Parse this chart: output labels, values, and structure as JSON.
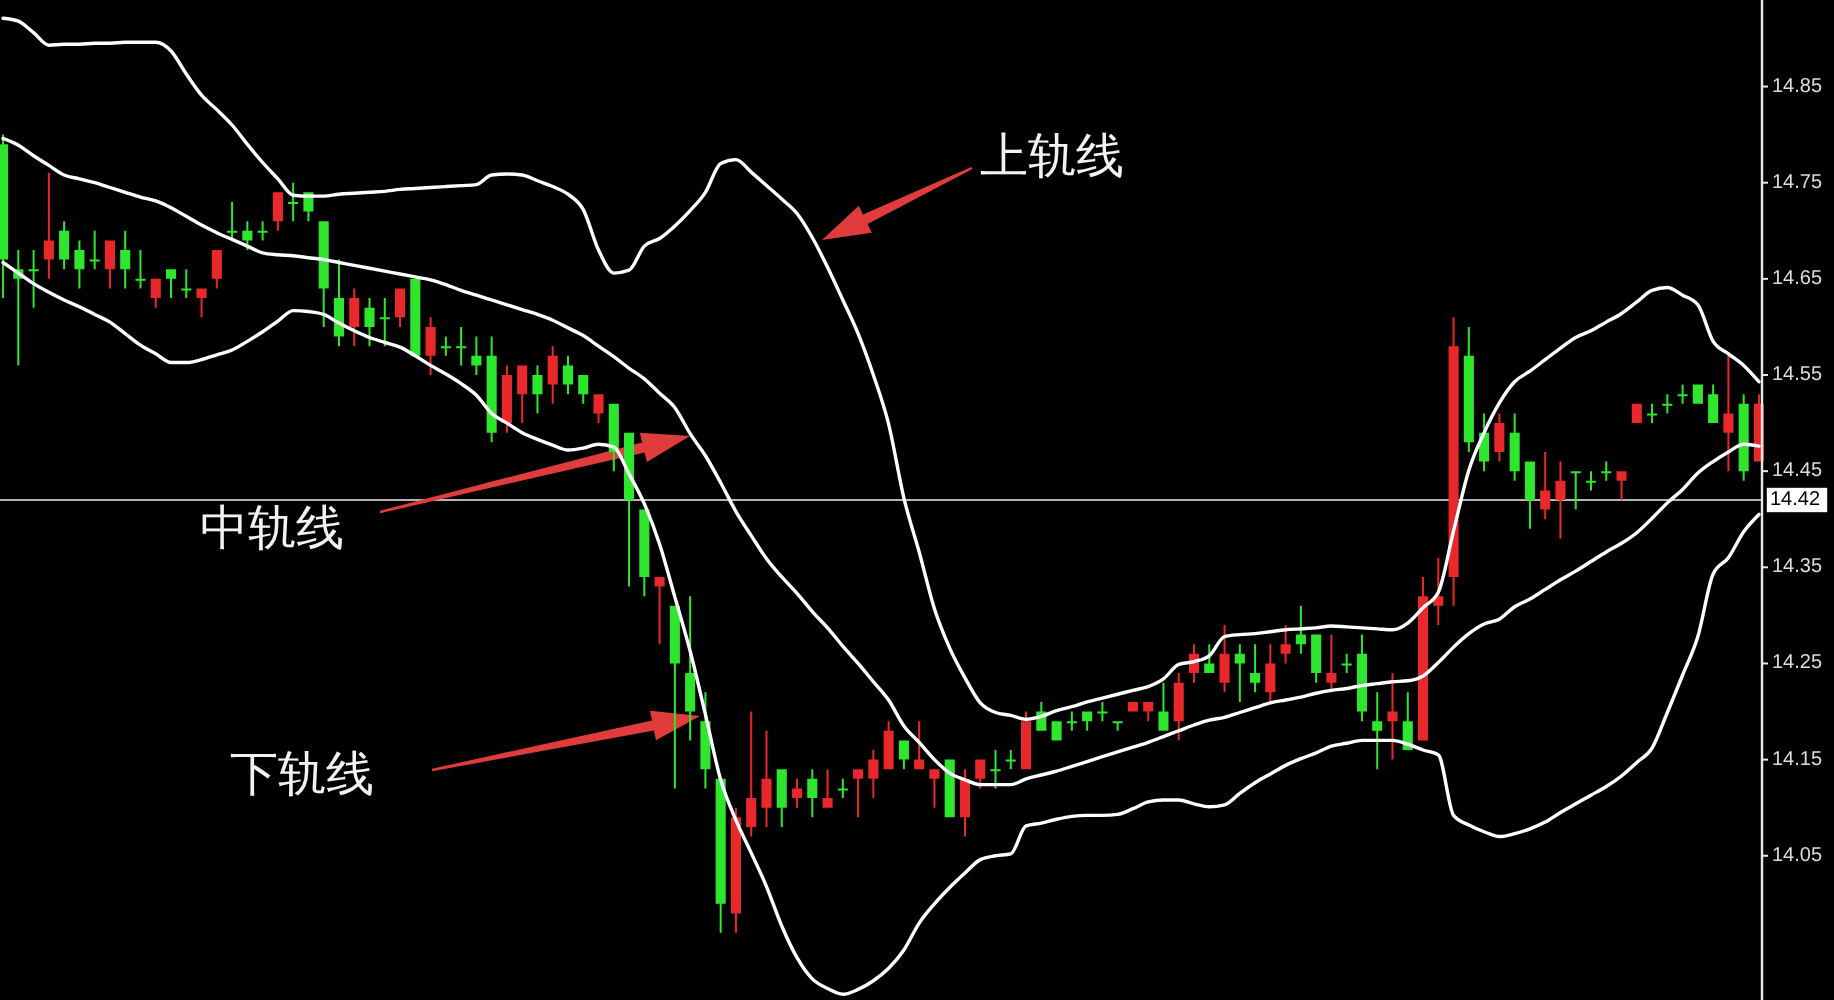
{
  "chart_data": {
    "type": "candlestick",
    "categories": [
      null,
      null,
      null,
      null,
      null,
      null,
      null,
      null,
      null,
      null,
      null,
      null,
      null,
      null,
      null,
      null,
      null,
      null,
      null,
      null,
      null,
      null,
      null,
      null,
      null,
      null,
      null,
      null,
      null,
      null,
      null,
      null,
      null,
      null,
      null,
      null,
      null,
      null,
      null,
      null,
      null,
      null,
      null,
      null,
      null,
      null,
      null,
      null,
      null,
      null,
      null,
      null,
      null,
      null,
      null,
      null,
      null,
      null,
      null,
      null,
      null,
      null,
      null,
      null,
      null,
      null,
      null,
      null,
      null,
      null,
      null,
      null,
      null,
      null,
      null,
      null,
      null,
      null,
      null,
      null,
      null,
      null,
      null,
      null,
      null,
      null,
      null,
      null,
      null,
      null,
      null,
      null,
      null,
      null,
      null,
      null,
      null,
      null,
      null,
      null,
      null,
      null,
      null,
      null,
      null,
      null,
      null,
      null,
      null,
      null,
      null,
      null,
      null,
      null,
      null,
      null
    ],
    "ohlc": [
      [
        14.79,
        14.8,
        14.63,
        14.67
      ],
      [
        14.66,
        14.68,
        14.56,
        14.65
      ],
      [
        14.66,
        14.68,
        14.62,
        14.66
      ],
      [
        14.67,
        14.76,
        14.65,
        14.69
      ],
      [
        14.7,
        14.71,
        14.66,
        14.67
      ],
      [
        14.68,
        14.69,
        14.64,
        14.66
      ],
      [
        14.67,
        14.7,
        14.66,
        14.67
      ],
      [
        14.66,
        14.69,
        14.64,
        14.69
      ],
      [
        14.68,
        14.7,
        14.64,
        14.66
      ],
      [
        14.65,
        14.68,
        14.64,
        14.65
      ],
      [
        14.63,
        14.65,
        14.62,
        14.65
      ],
      [
        14.66,
        14.66,
        14.63,
        14.65
      ],
      [
        14.64,
        14.66,
        14.63,
        14.64
      ],
      [
        14.63,
        14.64,
        14.61,
        14.64
      ],
      [
        14.65,
        14.68,
        14.64,
        14.68
      ],
      [
        14.7,
        14.73,
        14.69,
        14.7
      ],
      [
        14.7,
        14.71,
        14.68,
        14.69
      ],
      [
        14.7,
        14.71,
        14.69,
        14.7
      ],
      [
        14.71,
        14.74,
        14.7,
        14.74
      ],
      [
        14.73,
        14.75,
        14.71,
        14.73
      ],
      [
        14.74,
        14.74,
        14.71,
        14.72
      ],
      [
        14.71,
        14.71,
        14.6,
        14.64
      ],
      [
        14.63,
        14.67,
        14.58,
        14.59
      ],
      [
        14.6,
        14.64,
        14.58,
        14.63
      ],
      [
        14.62,
        14.63,
        14.58,
        14.6
      ],
      [
        14.61,
        14.63,
        14.58,
        14.61
      ],
      [
        14.61,
        14.64,
        14.6,
        14.64
      ],
      [
        14.65,
        14.65,
        14.57,
        14.57
      ],
      [
        14.57,
        14.61,
        14.55,
        14.6
      ],
      [
        14.58,
        14.59,
        14.57,
        14.58
      ],
      [
        14.58,
        14.6,
        14.56,
        14.58
      ],
      [
        14.57,
        14.59,
        14.55,
        14.56
      ],
      [
        14.57,
        14.59,
        14.48,
        14.49
      ],
      [
        14.5,
        14.56,
        14.49,
        14.55
      ],
      [
        14.53,
        14.56,
        14.5,
        14.56
      ],
      [
        14.55,
        14.56,
        14.51,
        14.53
      ],
      [
        14.54,
        14.58,
        14.52,
        14.57
      ],
      [
        14.56,
        14.57,
        14.53,
        14.54
      ],
      [
        14.55,
        14.55,
        14.52,
        14.53
      ],
      [
        14.51,
        14.53,
        14.5,
        14.53
      ],
      [
        14.52,
        14.52,
        14.45,
        14.47
      ],
      [
        14.49,
        14.49,
        14.33,
        14.42
      ],
      [
        14.41,
        14.41,
        14.32,
        14.34
      ],
      [
        14.33,
        14.34,
        14.27,
        14.34
      ],
      [
        14.31,
        14.31,
        14.12,
        14.25
      ],
      [
        14.24,
        14.32,
        14.17,
        14.2
      ],
      [
        14.19,
        14.22,
        14.12,
        14.14
      ],
      [
        14.13,
        14.13,
        13.97,
        14.0
      ],
      [
        13.99,
        14.1,
        13.97,
        14.09
      ],
      [
        14.08,
        14.2,
        14.07,
        14.11
      ],
      [
        14.1,
        14.18,
        14.08,
        14.13
      ],
      [
        14.14,
        14.14,
        14.08,
        14.1
      ],
      [
        14.11,
        14.13,
        14.1,
        14.12
      ],
      [
        14.13,
        14.14,
        14.09,
        14.11
      ],
      [
        14.1,
        14.14,
        14.1,
        14.11
      ],
      [
        14.12,
        14.13,
        14.11,
        14.12
      ],
      [
        14.13,
        14.14,
        14.09,
        14.14
      ],
      [
        14.13,
        14.16,
        14.11,
        14.15
      ],
      [
        14.14,
        14.19,
        14.14,
        14.18
      ],
      [
        14.17,
        14.17,
        14.14,
        14.15
      ],
      [
        14.14,
        14.19,
        14.14,
        14.15
      ],
      [
        14.13,
        14.14,
        14.1,
        14.14
      ],
      [
        14.15,
        14.15,
        14.09,
        14.09
      ],
      [
        14.09,
        14.14,
        14.07,
        14.13
      ],
      [
        14.13,
        14.15,
        14.12,
        14.15
      ],
      [
        14.14,
        14.16,
        14.12,
        14.14
      ],
      [
        14.15,
        14.16,
        14.14,
        14.15
      ],
      [
        14.14,
        14.2,
        14.14,
        14.19
      ],
      [
        14.2,
        14.21,
        14.18,
        14.18
      ],
      [
        14.19,
        14.19,
        14.17,
        14.17
      ],
      [
        14.19,
        14.2,
        14.18,
        14.19
      ],
      [
        14.2,
        14.2,
        14.18,
        14.19
      ],
      [
        14.2,
        14.21,
        14.19,
        14.2
      ],
      [
        14.19,
        14.19,
        14.18,
        14.19
      ],
      [
        14.2,
        14.21,
        14.2,
        14.21
      ],
      [
        14.2,
        14.21,
        14.19,
        14.21
      ],
      [
        14.2,
        14.23,
        14.18,
        14.18
      ],
      [
        14.19,
        14.24,
        14.17,
        14.23
      ],
      [
        14.24,
        14.27,
        14.23,
        14.26
      ],
      [
        14.25,
        14.27,
        14.24,
        14.24
      ],
      [
        14.23,
        14.29,
        14.22,
        14.26
      ],
      [
        14.26,
        14.27,
        14.21,
        14.25
      ],
      [
        14.24,
        14.27,
        14.22,
        14.23
      ],
      [
        14.22,
        14.27,
        14.21,
        14.25
      ],
      [
        14.26,
        14.29,
        14.25,
        14.27
      ],
      [
        14.28,
        14.31,
        14.26,
        14.27
      ],
      [
        14.28,
        14.28,
        14.23,
        14.24
      ],
      [
        14.23,
        14.28,
        14.22,
        14.24
      ],
      [
        14.25,
        14.26,
        14.24,
        14.25
      ],
      [
        14.26,
        14.28,
        14.19,
        14.2
      ],
      [
        14.19,
        14.22,
        14.14,
        14.18
      ],
      [
        14.19,
        14.24,
        14.15,
        14.2
      ],
      [
        14.19,
        14.22,
        14.16,
        14.16
      ],
      [
        14.17,
        14.34,
        14.17,
        14.32
      ],
      [
        14.31,
        14.36,
        14.29,
        14.32
      ],
      [
        14.34,
        14.61,
        14.31,
        14.58
      ],
      [
        14.57,
        14.6,
        14.47,
        14.48
      ],
      [
        14.49,
        14.51,
        14.45,
        14.46
      ],
      [
        14.47,
        14.51,
        14.46,
        14.5
      ],
      [
        14.49,
        14.51,
        14.44,
        14.45
      ],
      [
        14.46,
        14.46,
        14.39,
        14.42
      ],
      [
        14.41,
        14.47,
        14.4,
        14.43
      ],
      [
        14.42,
        14.46,
        14.38,
        14.44
      ],
      [
        14.45,
        14.45,
        14.41,
        14.45
      ],
      [
        14.44,
        14.45,
        14.43,
        14.44
      ],
      [
        14.45,
        14.46,
        14.44,
        14.45
      ],
      [
        14.44,
        14.45,
        14.42,
        14.45
      ],
      [
        14.5,
        14.52,
        14.5,
        14.52
      ],
      [
        14.51,
        14.52,
        14.5,
        14.51
      ],
      [
        14.52,
        14.53,
        14.51,
        14.52
      ],
      [
        14.53,
        14.54,
        14.52,
        14.53
      ],
      [
        14.54,
        14.54,
        14.52,
        14.52
      ],
      [
        14.53,
        14.54,
        14.5,
        14.5
      ],
      [
        14.49,
        14.57,
        14.45,
        14.51
      ],
      [
        14.52,
        14.53,
        14.44,
        14.45
      ],
      [
        14.46,
        14.53,
        14.46,
        14.52
      ]
    ],
    "colors": [
      "#2ee62e",
      "#2ee62e",
      "#2ee62e",
      "#e8282a",
      "#2ee62e",
      "#2ee62e",
      "#2ee62e",
      "#e8282a",
      "#2ee62e",
      "#2ee62e",
      "#e8282a",
      "#2ee62e",
      "#2ee62e",
      "#e8282a",
      "#e8282a",
      "#2ee62e",
      "#2ee62e",
      "#2ee62e",
      "#e8282a",
      "#2ee62e",
      "#2ee62e",
      "#2ee62e",
      "#2ee62e",
      "#e8282a",
      "#2ee62e",
      "#2ee62e",
      "#e8282a",
      "#2ee62e",
      "#e8282a",
      "#2ee62e",
      "#2ee62e",
      "#2ee62e",
      "#2ee62e",
      "#e8282a",
      "#e8282a",
      "#2ee62e",
      "#e8282a",
      "#2ee62e",
      "#2ee62e",
      "#e8282a",
      "#2ee62e",
      "#2ee62e",
      "#2ee62e",
      "#e8282a",
      "#2ee62e",
      "#2ee62e",
      "#2ee62e",
      "#2ee62e",
      "#e8282a",
      "#e8282a",
      "#e8282a",
      "#2ee62e",
      "#e8282a",
      "#2ee62e",
      "#e8282a",
      "#2ee62e",
      "#e8282a",
      "#e8282a",
      "#e8282a",
      "#2ee62e",
      "#e8282a",
      "#e8282a",
      "#2ee62e",
      "#e8282a",
      "#e8282a",
      "#2ee62e",
      "#2ee62e",
      "#e8282a",
      "#2ee62e",
      "#2ee62e",
      "#2ee62e",
      "#2ee62e",
      "#2ee62e",
      "#2ee62e",
      "#e8282a",
      "#e8282a",
      "#2ee62e",
      "#e8282a",
      "#e8282a",
      "#2ee62e",
      "#e8282a",
      "#2ee62e",
      "#2ee62e",
      "#e8282a",
      "#e8282a",
      "#2ee62e",
      "#2ee62e",
      "#e8282a",
      "#2ee62e",
      "#2ee62e",
      "#2ee62e",
      "#e8282a",
      "#2ee62e",
      "#e8282a",
      "#e8282a",
      "#e8282a",
      "#2ee62e",
      "#2ee62e",
      "#e8282a",
      "#2ee62e",
      "#2ee62e",
      "#e8282a",
      "#e8282a",
      "#2ee62e",
      "#2ee62e",
      "#2ee62e",
      "#e8282a",
      "#e8282a",
      "#2ee62e",
      "#2ee62e",
      "#2ee62e",
      "#2ee62e",
      "#2ee62e",
      "#e8282a",
      "#2ee62e",
      "#e8282a"
    ],
    "series": [
      {
        "type": "line",
        "color": "#ffffff",
        "values": [
          14.921,
          14.918,
          14.906,
          14.893,
          14.894,
          14.894,
          14.895,
          14.895,
          14.896,
          14.896,
          14.896,
          14.887,
          14.863,
          14.841,
          14.826,
          14.81,
          14.79,
          14.771,
          14.754,
          14.737,
          14.736,
          14.736,
          14.738,
          14.739,
          14.74,
          14.741,
          14.743,
          14.744,
          14.745,
          14.746,
          14.747,
          14.748,
          14.758,
          14.759,
          14.758,
          14.752,
          14.746,
          14.738,
          14.722,
          14.68,
          14.656,
          14.659,
          14.684,
          14.692,
          14.705,
          14.721,
          14.74,
          14.77,
          14.774,
          14.761,
          14.747,
          14.733,
          14.718,
          14.693,
          14.662,
          14.628,
          14.593,
          14.55,
          14.499,
          14.422,
          14.366,
          14.307,
          14.266,
          14.235,
          14.209,
          14.199,
          14.196,
          14.192,
          14.195,
          14.201,
          14.205,
          14.21,
          14.214,
          14.218,
          14.222,
          14.226,
          14.234,
          14.249,
          14.252,
          14.258,
          14.278,
          14.28,
          14.281,
          14.283,
          14.285,
          14.286,
          14.287,
          14.289,
          14.288,
          14.287,
          14.286,
          14.285,
          14.292,
          14.308,
          14.324,
          14.388,
          14.451,
          14.49,
          14.521,
          14.543,
          14.554,
          14.566,
          14.578,
          14.589,
          14.596,
          14.605,
          14.614,
          14.626,
          14.638,
          14.641,
          14.633,
          14.623,
          14.585,
          14.572,
          14.56,
          14.543
        ]
      },
      {
        "type": "line",
        "color": "#ffffff",
        "values": [
          14.796,
          14.789,
          14.778,
          14.768,
          14.758,
          14.754,
          14.75,
          14.745,
          14.74,
          14.735,
          14.731,
          14.724,
          14.715,
          14.706,
          14.698,
          14.691,
          14.684,
          14.677,
          14.675,
          14.674,
          14.672,
          14.67,
          14.667,
          14.664,
          14.661,
          14.658,
          14.655,
          14.652,
          14.649,
          14.644,
          14.638,
          14.633,
          14.628,
          14.623,
          14.618,
          14.613,
          14.607,
          14.599,
          14.591,
          14.58,
          14.569,
          14.557,
          14.546,
          14.531,
          14.516,
          14.489,
          14.466,
          14.438,
          14.408,
          14.383,
          14.359,
          14.34,
          14.323,
          14.304,
          14.287,
          14.268,
          14.25,
          14.231,
          14.212,
          14.185,
          14.168,
          14.15,
          14.136,
          14.129,
          14.124,
          14.124,
          14.124,
          14.13,
          14.134,
          14.138,
          14.143,
          14.148,
          14.153,
          14.158,
          14.163,
          14.168,
          14.174,
          14.18,
          14.186,
          14.191,
          14.194,
          14.199,
          14.204,
          14.209,
          14.212,
          14.215,
          14.219,
          14.222,
          14.224,
          14.227,
          14.229,
          14.231,
          14.232,
          14.237,
          14.251,
          14.267,
          14.281,
          14.291,
          14.296,
          14.309,
          14.317,
          14.327,
          14.337,
          14.346,
          14.356,
          14.366,
          14.375,
          14.386,
          14.401,
          14.417,
          14.431,
          14.448,
          14.46,
          14.47,
          14.478,
          14.476
        ]
      },
      {
        "type": "line",
        "color": "#ffffff",
        "values": [
          14.667,
          14.656,
          14.645,
          14.636,
          14.628,
          14.621,
          14.613,
          14.605,
          14.593,
          14.581,
          14.572,
          14.563,
          14.563,
          14.566,
          14.571,
          14.576,
          14.585,
          14.595,
          14.606,
          14.617,
          14.616,
          14.613,
          14.604,
          14.596,
          14.589,
          14.584,
          14.579,
          14.57,
          14.56,
          14.551,
          14.541,
          14.529,
          14.51,
          14.5,
          14.49,
          14.483,
          14.477,
          14.472,
          14.474,
          14.478,
          14.475,
          14.447,
          14.416,
          14.374,
          14.319,
          14.263,
          14.197,
          14.129,
          14.087,
          14.053,
          14.018,
          13.977,
          13.944,
          13.922,
          13.912,
          13.906,
          13.911,
          13.92,
          13.933,
          13.952,
          13.98,
          14.0,
          14.017,
          14.032,
          14.046,
          14.05,
          14.052,
          14.081,
          14.084,
          14.088,
          14.091,
          14.092,
          14.092,
          14.093,
          14.099,
          14.106,
          14.108,
          14.108,
          14.104,
          14.101,
          14.103,
          14.115,
          14.126,
          14.135,
          14.144,
          14.151,
          14.157,
          14.164,
          14.167,
          14.17,
          14.17,
          14.17,
          14.166,
          14.16,
          14.155,
          14.092,
          14.082,
          14.075,
          14.07,
          14.073,
          14.078,
          14.085,
          14.095,
          14.104,
          14.113,
          14.122,
          14.133,
          14.147,
          14.162,
          14.199,
          14.238,
          14.278,
          14.343,
          14.36,
          14.387,
          14.405
        ]
      }
    ],
    "ylim": [
      13.9,
      14.94
    ],
    "yticks": [
      14.05,
      14.15,
      14.25,
      14.35,
      14.45,
      14.55,
      14.65,
      14.75,
      14.85
    ],
    "tick_labels": "y",
    "ref_lines": [
      {
        "axis": "y",
        "value": 14.42,
        "label": "14.42",
        "color": "#b4b4b4"
      }
    ],
    "annotations": [
      "上轨线",
      "中轨线",
      "下轨线"
    ]
  }
}
